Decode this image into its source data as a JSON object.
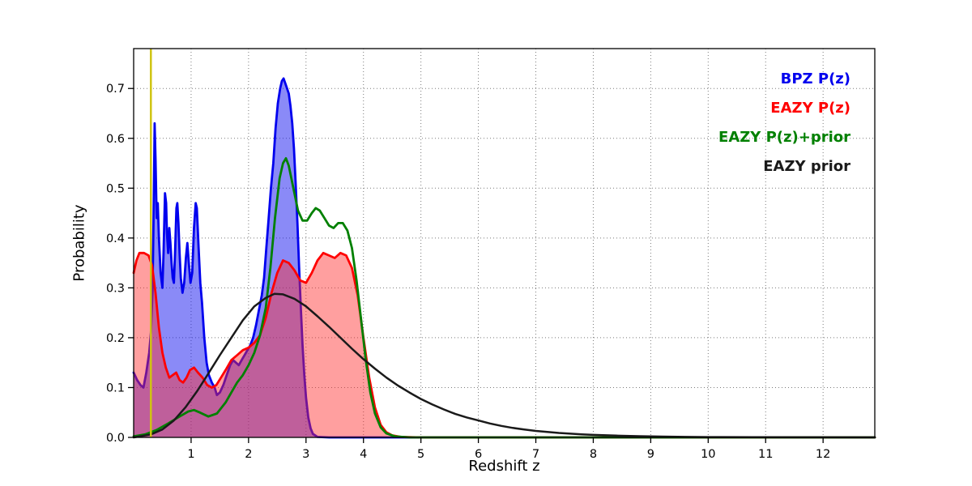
{
  "chart_data": {
    "type": "line",
    "title": "",
    "xlabel": "Redshift z",
    "ylabel": "Probability",
    "xlim": [
      0,
      12.9
    ],
    "ylim": [
      0,
      0.78
    ],
    "grid": "dotted",
    "legend_position": "upper right",
    "xticks": [
      1,
      2,
      3,
      4,
      5,
      6,
      7,
      8,
      9,
      10,
      11,
      12
    ],
    "xtick_labels": [
      "1",
      "2",
      "3",
      "4",
      "5",
      "6",
      "7",
      "8",
      "9",
      "10",
      "11",
      "12"
    ],
    "yticks": [
      0,
      0.1,
      0.2,
      0.3,
      0.4,
      0.5,
      0.6,
      0.7
    ],
    "ytick_labels": [
      "0.0",
      "0.1",
      "0.2",
      "0.3",
      "0.4",
      "0.5",
      "0.6",
      "0.7"
    ],
    "vline": {
      "x": 0.3,
      "color": "#cfc412",
      "width": 2.5
    },
    "series": [
      {
        "name": "BPZ P(z)",
        "color": "#0000ee",
        "fill": true,
        "fill_color": "#1515f0",
        "fill_opacity": 0.5,
        "width": 2.8,
        "points": [
          [
            0,
            0.13
          ],
          [
            0.06,
            0.115
          ],
          [
            0.12,
            0.105
          ],
          [
            0.17,
            0.1
          ],
          [
            0.22,
            0.13
          ],
          [
            0.27,
            0.17
          ],
          [
            0.3,
            0.21
          ],
          [
            0.33,
            0.3
          ],
          [
            0.35,
            0.47
          ],
          [
            0.365,
            0.63
          ],
          [
            0.38,
            0.56
          ],
          [
            0.4,
            0.44
          ],
          [
            0.42,
            0.47
          ],
          [
            0.44,
            0.4
          ],
          [
            0.47,
            0.33
          ],
          [
            0.5,
            0.3
          ],
          [
            0.52,
            0.37
          ],
          [
            0.545,
            0.49
          ],
          [
            0.565,
            0.47
          ],
          [
            0.58,
            0.41
          ],
          [
            0.6,
            0.37
          ],
          [
            0.62,
            0.42
          ],
          [
            0.64,
            0.39
          ],
          [
            0.66,
            0.35
          ],
          [
            0.68,
            0.32
          ],
          [
            0.7,
            0.31
          ],
          [
            0.72,
            0.37
          ],
          [
            0.745,
            0.46
          ],
          [
            0.76,
            0.47
          ],
          [
            0.78,
            0.43
          ],
          [
            0.8,
            0.37
          ],
          [
            0.82,
            0.32
          ],
          [
            0.85,
            0.29
          ],
          [
            0.88,
            0.31
          ],
          [
            0.91,
            0.36
          ],
          [
            0.935,
            0.39
          ],
          [
            0.96,
            0.35
          ],
          [
            0.99,
            0.31
          ],
          [
            1.02,
            0.33
          ],
          [
            1.05,
            0.42
          ],
          [
            1.08,
            0.47
          ],
          [
            1.1,
            0.46
          ],
          [
            1.13,
            0.38
          ],
          [
            1.16,
            0.31
          ],
          [
            1.19,
            0.27
          ],
          [
            1.23,
            0.2
          ],
          [
            1.27,
            0.15
          ],
          [
            1.31,
            0.125
          ],
          [
            1.36,
            0.11
          ],
          [
            1.41,
            0.1
          ],
          [
            1.45,
            0.085
          ],
          [
            1.5,
            0.09
          ],
          [
            1.56,
            0.105
          ],
          [
            1.62,
            0.125
          ],
          [
            1.68,
            0.145
          ],
          [
            1.73,
            0.155
          ],
          [
            1.78,
            0.15
          ],
          [
            1.83,
            0.145
          ],
          [
            1.88,
            0.155
          ],
          [
            1.93,
            0.165
          ],
          [
            1.98,
            0.175
          ],
          [
            2.03,
            0.185
          ],
          [
            2.08,
            0.2
          ],
          [
            2.13,
            0.225
          ],
          [
            2.18,
            0.255
          ],
          [
            2.23,
            0.285
          ],
          [
            2.27,
            0.32
          ],
          [
            2.31,
            0.38
          ],
          [
            2.35,
            0.44
          ],
          [
            2.39,
            0.5
          ],
          [
            2.43,
            0.55
          ],
          [
            2.47,
            0.62
          ],
          [
            2.51,
            0.67
          ],
          [
            2.55,
            0.7
          ],
          [
            2.58,
            0.715
          ],
          [
            2.61,
            0.72
          ],
          [
            2.64,
            0.71
          ],
          [
            2.67,
            0.7
          ],
          [
            2.7,
            0.69
          ],
          [
            2.73,
            0.665
          ],
          [
            2.76,
            0.63
          ],
          [
            2.79,
            0.58
          ],
          [
            2.82,
            0.51
          ],
          [
            2.85,
            0.43
          ],
          [
            2.88,
            0.34
          ],
          [
            2.91,
            0.26
          ],
          [
            2.94,
            0.185
          ],
          [
            2.97,
            0.125
          ],
          [
            3.0,
            0.08
          ],
          [
            3.04,
            0.04
          ],
          [
            3.08,
            0.018
          ],
          [
            3.12,
            0.007
          ],
          [
            3.2,
            0.001
          ],
          [
            3.4,
            0
          ],
          [
            12.9,
            0
          ]
        ]
      },
      {
        "name": "EAZY P(z)",
        "color": "#ff0000",
        "fill": true,
        "fill_color": "#ff2a2a",
        "fill_opacity": 0.45,
        "width": 2.8,
        "points": [
          [
            0,
            0.33
          ],
          [
            0.05,
            0.355
          ],
          [
            0.1,
            0.37
          ],
          [
            0.18,
            0.37
          ],
          [
            0.26,
            0.365
          ],
          [
            0.32,
            0.345
          ],
          [
            0.38,
            0.29
          ],
          [
            0.44,
            0.22
          ],
          [
            0.5,
            0.17
          ],
          [
            0.56,
            0.14
          ],
          [
            0.62,
            0.12
          ],
          [
            0.68,
            0.125
          ],
          [
            0.74,
            0.13
          ],
          [
            0.8,
            0.115
          ],
          [
            0.86,
            0.11
          ],
          [
            0.92,
            0.12
          ],
          [
            0.98,
            0.135
          ],
          [
            1.05,
            0.14
          ],
          [
            1.12,
            0.13
          ],
          [
            1.2,
            0.12
          ],
          [
            1.28,
            0.105
          ],
          [
            1.36,
            0.1
          ],
          [
            1.44,
            0.105
          ],
          [
            1.52,
            0.12
          ],
          [
            1.6,
            0.135
          ],
          [
            1.7,
            0.155
          ],
          [
            1.8,
            0.165
          ],
          [
            1.9,
            0.175
          ],
          [
            2.0,
            0.18
          ],
          [
            2.1,
            0.19
          ],
          [
            2.2,
            0.205
          ],
          [
            2.3,
            0.24
          ],
          [
            2.4,
            0.29
          ],
          [
            2.5,
            0.33
          ],
          [
            2.6,
            0.355
          ],
          [
            2.7,
            0.35
          ],
          [
            2.8,
            0.335
          ],
          [
            2.9,
            0.315
          ],
          [
            3.0,
            0.31
          ],
          [
            3.1,
            0.33
          ],
          [
            3.2,
            0.355
          ],
          [
            3.3,
            0.37
          ],
          [
            3.4,
            0.365
          ],
          [
            3.5,
            0.36
          ],
          [
            3.6,
            0.37
          ],
          [
            3.7,
            0.365
          ],
          [
            3.8,
            0.34
          ],
          [
            3.9,
            0.285
          ],
          [
            4.0,
            0.2
          ],
          [
            4.1,
            0.12
          ],
          [
            4.2,
            0.06
          ],
          [
            4.3,
            0.025
          ],
          [
            4.4,
            0.01
          ],
          [
            4.5,
            0.004
          ],
          [
            4.65,
            0.001
          ],
          [
            5.0,
            0
          ],
          [
            12.9,
            0
          ]
        ]
      },
      {
        "name": "EAZY P(z)+prior",
        "color": "#008000",
        "fill": false,
        "fill_color": "#008000",
        "fill_opacity": 0,
        "width": 2.8,
        "points": [
          [
            0,
            0.002
          ],
          [
            0.2,
            0.006
          ],
          [
            0.4,
            0.015
          ],
          [
            0.6,
            0.028
          ],
          [
            0.8,
            0.042
          ],
          [
            0.95,
            0.052
          ],
          [
            1.05,
            0.055
          ],
          [
            1.15,
            0.05
          ],
          [
            1.3,
            0.042
          ],
          [
            1.45,
            0.048
          ],
          [
            1.6,
            0.07
          ],
          [
            1.7,
            0.09
          ],
          [
            1.8,
            0.11
          ],
          [
            1.9,
            0.125
          ],
          [
            2.0,
            0.145
          ],
          [
            2.1,
            0.17
          ],
          [
            2.2,
            0.205
          ],
          [
            2.3,
            0.26
          ],
          [
            2.38,
            0.34
          ],
          [
            2.46,
            0.44
          ],
          [
            2.54,
            0.52
          ],
          [
            2.6,
            0.55
          ],
          [
            2.65,
            0.56
          ],
          [
            2.7,
            0.545
          ],
          [
            2.78,
            0.5
          ],
          [
            2.86,
            0.455
          ],
          [
            2.94,
            0.435
          ],
          [
            3.02,
            0.435
          ],
          [
            3.1,
            0.45
          ],
          [
            3.17,
            0.46
          ],
          [
            3.24,
            0.455
          ],
          [
            3.32,
            0.44
          ],
          [
            3.4,
            0.425
          ],
          [
            3.48,
            0.42
          ],
          [
            3.56,
            0.43
          ],
          [
            3.64,
            0.43
          ],
          [
            3.72,
            0.415
          ],
          [
            3.8,
            0.38
          ],
          [
            3.88,
            0.315
          ],
          [
            3.96,
            0.235
          ],
          [
            4.04,
            0.155
          ],
          [
            4.12,
            0.09
          ],
          [
            4.2,
            0.048
          ],
          [
            4.3,
            0.02
          ],
          [
            4.4,
            0.008
          ],
          [
            4.55,
            0.002
          ],
          [
            4.8,
            0
          ],
          [
            12.9,
            0
          ]
        ]
      },
      {
        "name": "EAZY prior",
        "color": "#1a1a1a",
        "fill": false,
        "fill_color": "#1a1a1a",
        "fill_opacity": 0,
        "width": 2.5,
        "points": [
          [
            0,
            0
          ],
          [
            0.3,
            0.006
          ],
          [
            0.5,
            0.016
          ],
          [
            0.7,
            0.034
          ],
          [
            0.9,
            0.06
          ],
          [
            1.1,
            0.092
          ],
          [
            1.3,
            0.128
          ],
          [
            1.5,
            0.165
          ],
          [
            1.7,
            0.2
          ],
          [
            1.9,
            0.235
          ],
          [
            2.1,
            0.263
          ],
          [
            2.3,
            0.28
          ],
          [
            2.45,
            0.288
          ],
          [
            2.6,
            0.287
          ],
          [
            2.8,
            0.278
          ],
          [
            3.0,
            0.263
          ],
          [
            3.2,
            0.243
          ],
          [
            3.4,
            0.222
          ],
          [
            3.6,
            0.2
          ],
          [
            3.8,
            0.178
          ],
          [
            4.0,
            0.157
          ],
          [
            4.2,
            0.138
          ],
          [
            4.4,
            0.12
          ],
          [
            4.6,
            0.104
          ],
          [
            4.8,
            0.09
          ],
          [
            5.0,
            0.077
          ],
          [
            5.2,
            0.066
          ],
          [
            5.4,
            0.056
          ],
          [
            5.6,
            0.047
          ],
          [
            5.8,
            0.04
          ],
          [
            6.0,
            0.034
          ],
          [
            6.2,
            0.028
          ],
          [
            6.4,
            0.023
          ],
          [
            6.6,
            0.019
          ],
          [
            6.8,
            0.016
          ],
          [
            7.0,
            0.013
          ],
          [
            7.2,
            0.011
          ],
          [
            7.4,
            0.009
          ],
          [
            7.6,
            0.0075
          ],
          [
            7.8,
            0.006
          ],
          [
            8.0,
            0.005
          ],
          [
            8.4,
            0.0035
          ],
          [
            8.8,
            0.0024
          ],
          [
            9.2,
            0.0016
          ],
          [
            9.6,
            0.001
          ],
          [
            10.0,
            0.0007
          ],
          [
            10.8,
            0.0003
          ],
          [
            11.6,
            0.0001
          ],
          [
            12.9,
            0
          ]
        ]
      }
    ]
  }
}
